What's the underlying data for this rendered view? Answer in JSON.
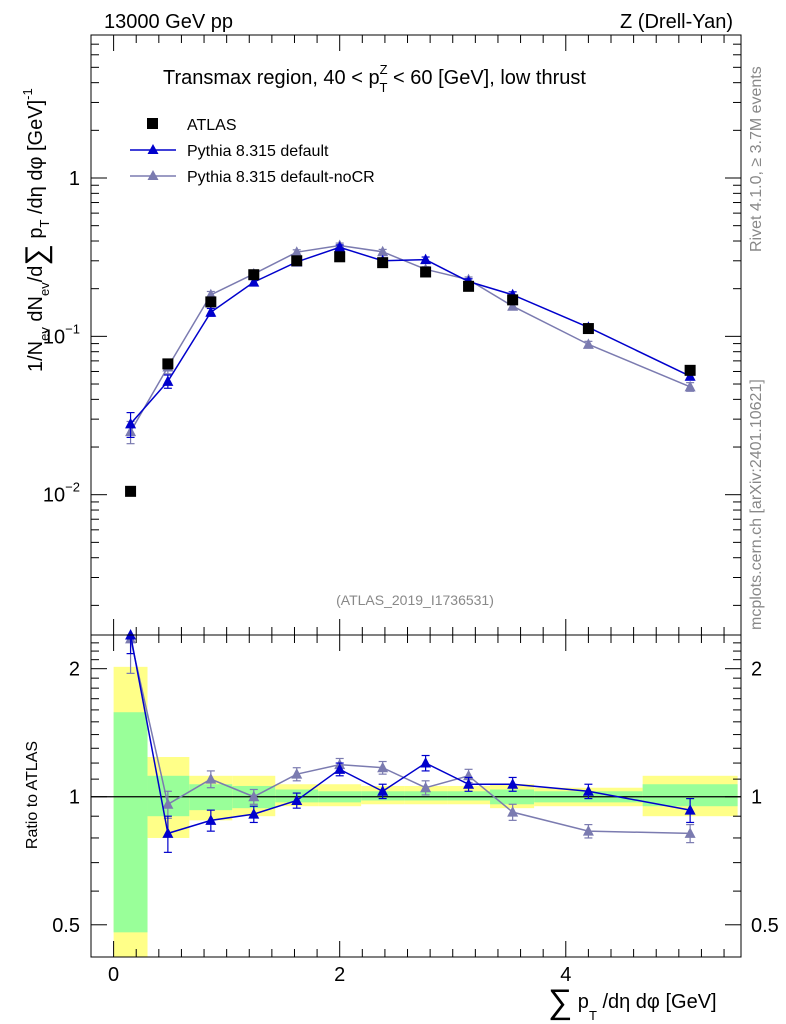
{
  "header": {
    "left": "13000 GeV pp",
    "right": "Z (Drell-Yan)"
  },
  "side_labels": {
    "rivet": "Rivet 4.1.0, ≥ 3.7M events",
    "mcplots": "mcplots.cern.ch [arXiv:2401.10621]"
  },
  "colors": {
    "atlas": "#000000",
    "default": "#0000cc",
    "nocr": "#7b7bb0",
    "band_outer": "#ffff88",
    "band_inner": "#99ff99"
  },
  "chart_data": [
    {
      "type": "line",
      "title": "Transmax region, 40 < p_T^Z < 60 [GeV], low thrust",
      "title_parts": {
        "prefix": "Transmax region, 40 < p",
        "sup": "Z",
        "sub": "T",
        "suffix": " < 60 [GeV], low thrust"
      },
      "analysis_tag": "(ATLAS_2019_I1736531)",
      "ylabel": "1/N_ev dN_ev/d∑ p_T /dη dφ [GeV]^-1",
      "ylabel_parts": {
        "a": "1/N",
        "a_sub": "ev",
        "b": " dN",
        "b_sub": "ev",
        "c": "/d",
        "sum": "∑",
        "d": " p",
        "d_sub": "T",
        "e": " /dη dφ  [GeV]",
        "e_sup": "-1"
      },
      "yscale": "log",
      "ylim": [
        0.0013,
        8
      ],
      "xlim": [
        -0.2,
        5.55
      ],
      "y_ticks": [
        {
          "value": 0.01,
          "base": "10",
          "exp": "−2"
        },
        {
          "value": 0.1,
          "base": "10",
          "exp": "−1"
        },
        {
          "value": 1,
          "base": "1",
          "exp": ""
        }
      ],
      "legend": {
        "position": "top-left",
        "entries": [
          "ATLAS",
          "Pythia 8.315 default",
          "Pythia 8.315 default-noCR"
        ]
      },
      "series": [
        {
          "name": "ATLAS",
          "marker": "square",
          "x": [
            0.15,
            0.48,
            0.86,
            1.24,
            1.62,
            2.0,
            2.38,
            2.76,
            3.14,
            3.53,
            4.2,
            5.1
          ],
          "values": [
            0.0105,
            0.067,
            0.165,
            0.245,
            0.3,
            0.318,
            0.292,
            0.255,
            0.207,
            0.17,
            0.112,
            0.061
          ],
          "errors": [
            0.0004,
            0.003,
            0.006,
            0.009,
            0.01,
            0.011,
            0.01,
            0.009,
            0.008,
            0.007,
            0.005,
            0.003
          ]
        },
        {
          "name": "Pythia 8.315 default",
          "marker": "triangle",
          "x": [
            0.15,
            0.48,
            0.86,
            1.24,
            1.62,
            2.0,
            2.38,
            2.76,
            3.14,
            3.53,
            4.2,
            5.1
          ],
          "values": [
            0.028,
            0.052,
            0.142,
            0.22,
            0.295,
            0.365,
            0.3,
            0.305,
            0.222,
            0.183,
            0.114,
            0.056
          ],
          "errors": [
            0.005,
            0.005,
            0.008,
            0.009,
            0.011,
            0.013,
            0.011,
            0.012,
            0.009,
            0.008,
            0.005,
            0.003
          ]
        },
        {
          "name": "Pythia 8.315 default-noCR",
          "marker": "triangle",
          "x": [
            0.15,
            0.48,
            0.86,
            1.24,
            1.62,
            2.0,
            2.38,
            2.76,
            3.14,
            3.53,
            4.2,
            5.1
          ],
          "values": [
            0.025,
            0.064,
            0.183,
            0.248,
            0.34,
            0.375,
            0.342,
            0.265,
            0.228,
            0.155,
            0.089,
            0.048
          ],
          "errors": [
            0.004,
            0.006,
            0.009,
            0.01,
            0.012,
            0.013,
            0.012,
            0.01,
            0.009,
            0.007,
            0.004,
            0.003
          ]
        }
      ]
    },
    {
      "type": "line",
      "title": "",
      "ylabel": "Ratio to ATLAS",
      "xlabel": "∑ p_T /dη dφ [GeV]",
      "xlabel_parts": {
        "sum": "∑",
        "a": " p",
        "a_sub": "T",
        "b": " /dη dφ [GeV]"
      },
      "yscale": "log",
      "ylim": [
        0.42,
        2.4
      ],
      "xlim": [
        -0.2,
        5.55
      ],
      "x_ticks": [
        0,
        2,
        4
      ],
      "y_ticks": [
        0.5,
        1,
        2
      ],
      "reference_line": 1,
      "bands": {
        "edges": [
          0.0,
          0.3,
          0.67,
          1.05,
          1.43,
          1.81,
          2.19,
          2.57,
          2.95,
          3.33,
          3.72,
          4.68,
          5.52
        ],
        "outer": [
          [
            0.3,
            2.02
          ],
          [
            0.8,
            1.24
          ],
          [
            0.88,
            1.12
          ],
          [
            0.9,
            1.12
          ],
          [
            0.95,
            1.07
          ],
          [
            0.95,
            1.07
          ],
          [
            0.96,
            1.06
          ],
          [
            0.96,
            1.06
          ],
          [
            0.96,
            1.06
          ],
          [
            0.94,
            1.07
          ],
          [
            0.95,
            1.05
          ],
          [
            0.9,
            1.12
          ]
        ],
        "inner": [
          [
            0.48,
            1.58
          ],
          [
            0.9,
            1.12
          ],
          [
            0.93,
            1.07
          ],
          [
            0.94,
            1.06
          ],
          [
            0.97,
            1.04
          ],
          [
            0.97,
            1.03
          ],
          [
            0.98,
            1.03
          ],
          [
            0.98,
            1.03
          ],
          [
            0.98,
            1.03
          ],
          [
            0.96,
            1.04
          ],
          [
            0.97,
            1.03
          ],
          [
            0.95,
            1.07
          ]
        ]
      },
      "series": [
        {
          "name": "Pythia 8.315 default",
          "x": [
            0.15,
            0.48,
            0.86,
            1.24,
            1.62,
            2.0,
            2.38,
            2.76,
            3.14,
            3.53,
            4.2,
            5.1
          ],
          "values": [
            2.67,
            0.82,
            0.88,
            0.91,
            0.98,
            1.16,
            1.03,
            1.2,
            1.07,
            1.07,
            1.03,
            0.93
          ],
          "errors": [
            0.5,
            0.08,
            0.05,
            0.04,
            0.04,
            0.04,
            0.04,
            0.05,
            0.04,
            0.04,
            0.04,
            0.06
          ]
        },
        {
          "name": "Pythia 8.315 default-noCR",
          "x": [
            0.15,
            0.48,
            0.86,
            1.24,
            1.62,
            2.0,
            2.38,
            2.76,
            3.14,
            3.53,
            4.2,
            5.1
          ],
          "values": [
            2.35,
            0.96,
            1.1,
            1.0,
            1.13,
            1.19,
            1.17,
            1.05,
            1.12,
            0.92,
            0.83,
            0.82
          ],
          "errors": [
            0.4,
            0.07,
            0.05,
            0.04,
            0.04,
            0.04,
            0.04,
            0.04,
            0.04,
            0.04,
            0.03,
            0.04
          ]
        }
      ]
    }
  ]
}
